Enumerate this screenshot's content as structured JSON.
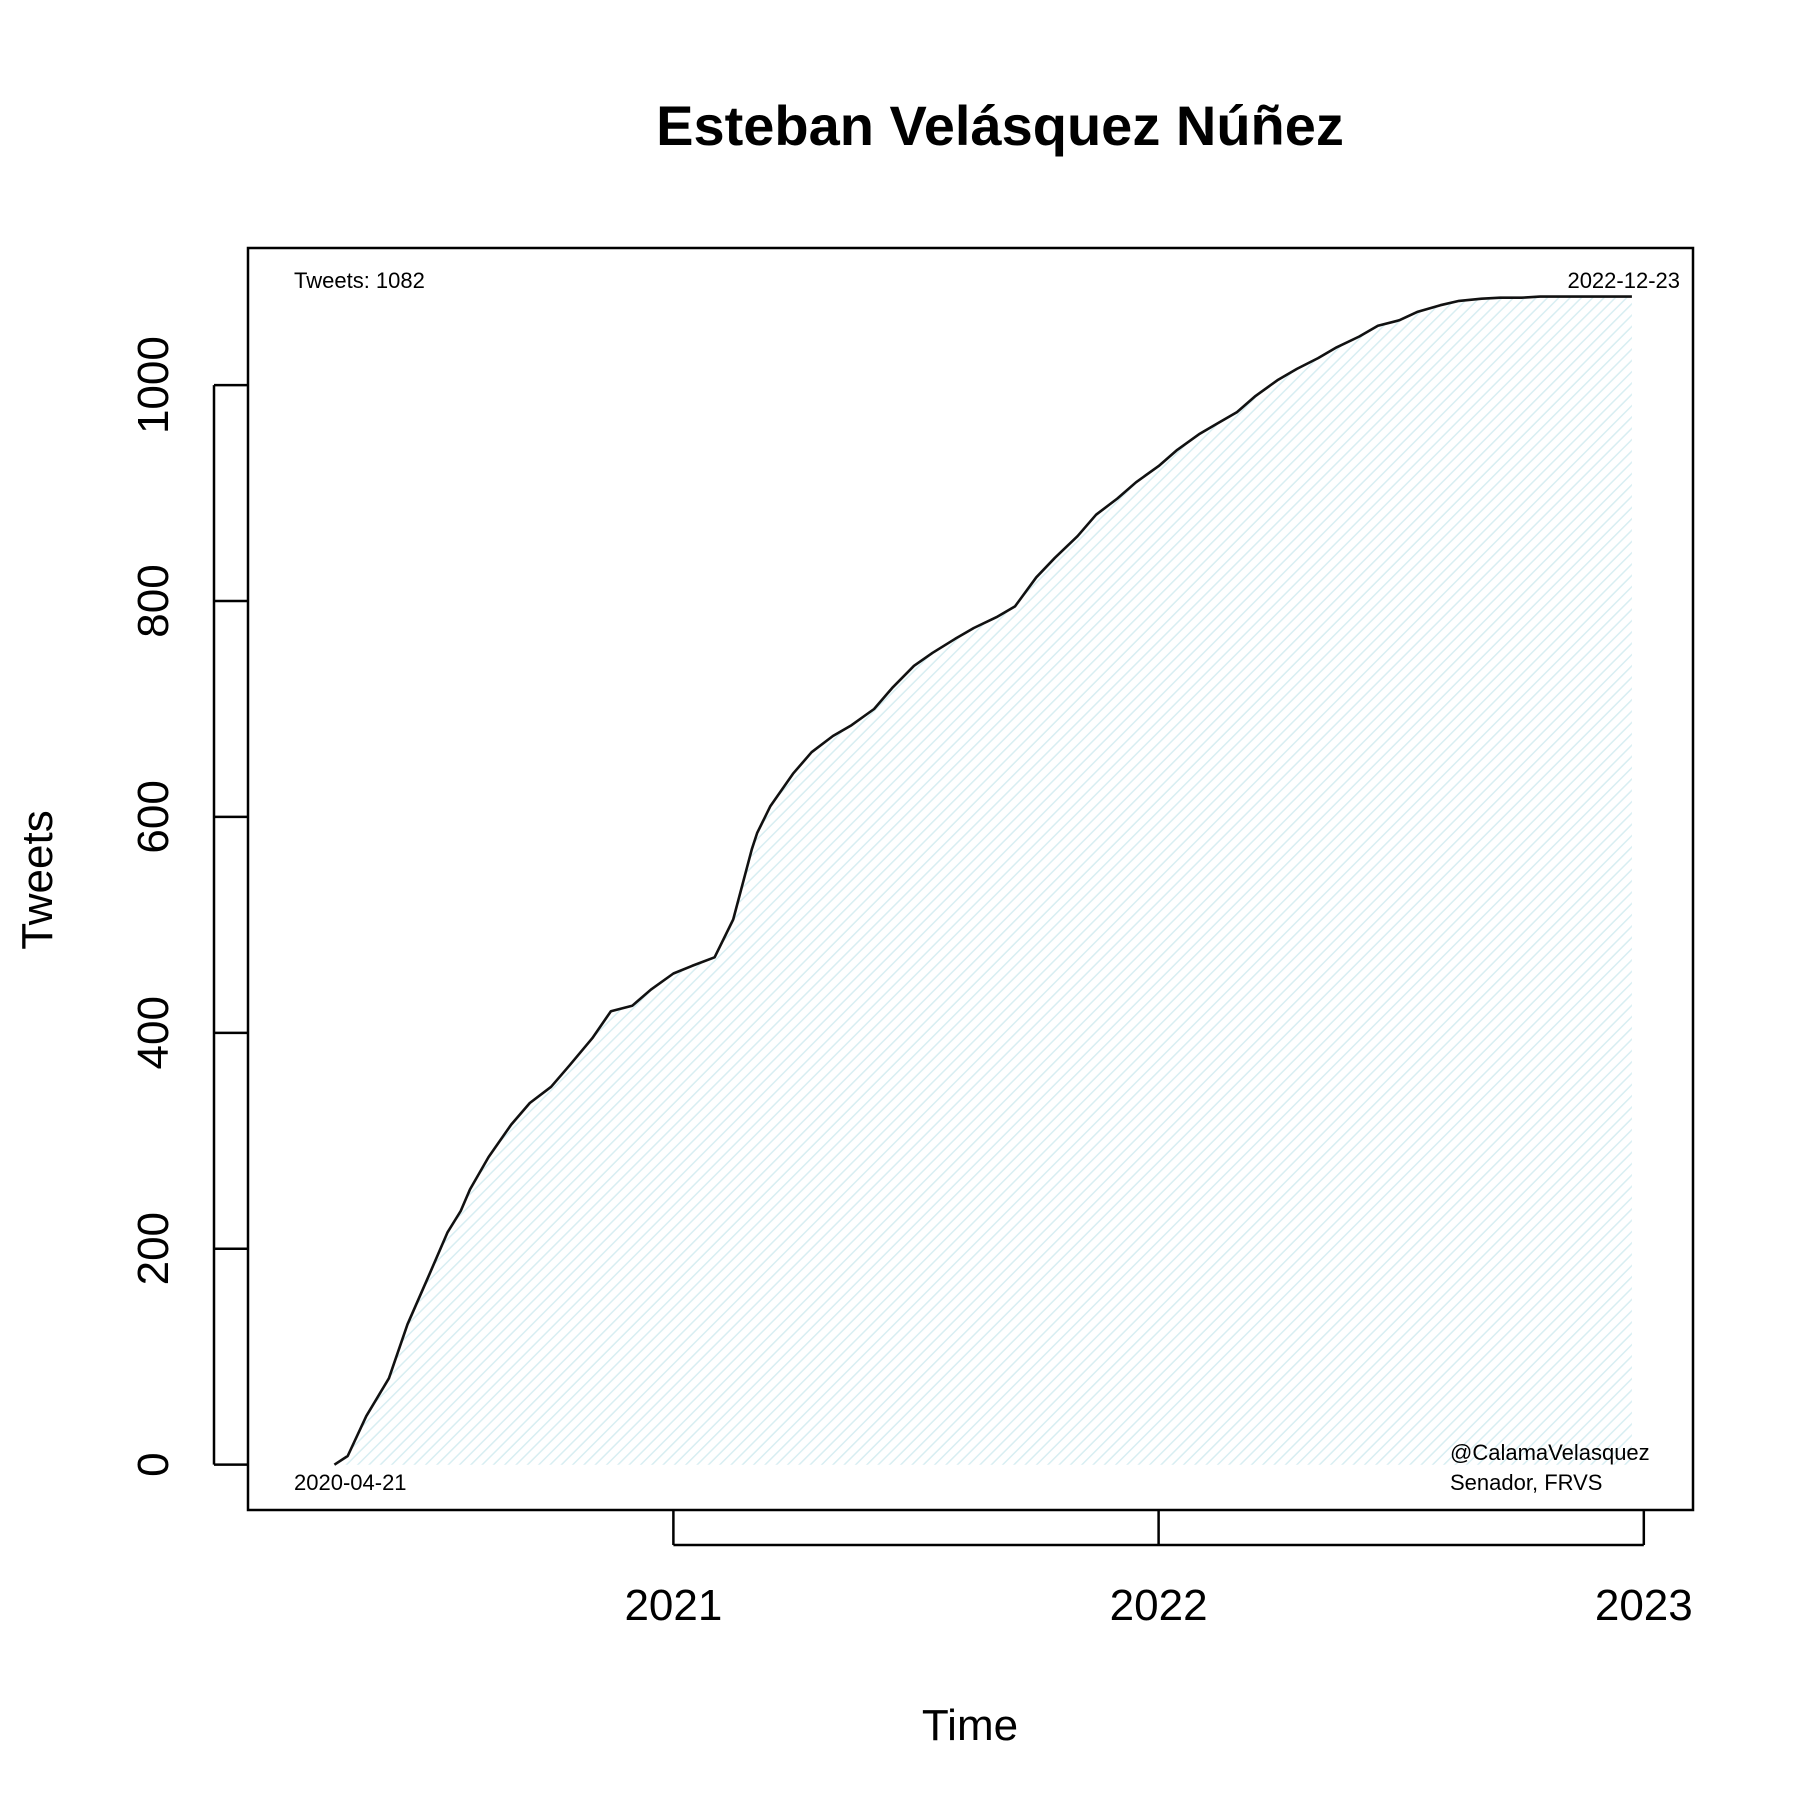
{
  "chart_data": {
    "type": "area",
    "title": "Esteban Velásquez Núñez",
    "xlabel": "Time",
    "ylabel": "Tweets",
    "x_ticks": [
      "2021",
      "2022",
      "2023"
    ],
    "y_ticks": [
      0,
      200,
      400,
      600,
      800,
      1000
    ],
    "ylim": [
      -42,
      1127
    ],
    "xlim": [
      "2020-02-16",
      "2023-02-07"
    ],
    "grid": false,
    "legend": "none",
    "fill_color": "#e8f4f6",
    "line_color": "#111111",
    "annotations": {
      "top_left": "Tweets: 1082",
      "top_right": "2022-12-23",
      "bottom_left": "2020-04-21",
      "bottom_right_1": "@CalamaVelasquez",
      "bottom_right_2": "Senador, FRVS"
    },
    "series": [
      {
        "x": [
          "2020-04-21",
          "2020-05-01",
          "2020-05-15",
          "2020-06-01",
          "2020-06-15",
          "2020-07-01",
          "2020-07-15",
          "2020-07-25",
          "2020-08-01",
          "2020-08-15",
          "2020-09-01",
          "2020-09-15",
          "2020-10-01",
          "2020-10-15",
          "2020-11-01",
          "2020-11-15",
          "2020-12-01",
          "2020-12-15",
          "2021-01-01",
          "2021-01-15",
          "2021-02-01",
          "2021-02-15",
          "2021-03-01",
          "2021-03-05",
          "2021-03-15",
          "2021-04-01",
          "2021-04-15",
          "2021-05-01",
          "2021-05-15",
          "2021-06-01",
          "2021-06-15",
          "2021-07-01",
          "2021-07-15",
          "2021-08-01",
          "2021-08-15",
          "2021-09-01",
          "2021-09-15",
          "2021-10-01",
          "2021-10-15",
          "2021-11-01",
          "2021-11-15",
          "2021-12-01",
          "2021-12-15",
          "2022-01-01",
          "2022-01-15",
          "2022-02-01",
          "2022-02-15",
          "2022-03-01",
          "2022-03-15",
          "2022-04-01",
          "2022-04-15",
          "2022-05-01",
          "2022-05-15",
          "2022-06-01",
          "2022-06-15",
          "2022-07-01",
          "2022-07-15",
          "2022-08-01",
          "2022-08-15",
          "2022-09-01",
          "2022-09-15",
          "2022-10-01",
          "2022-10-15",
          "2022-11-01",
          "2022-11-15",
          "2022-12-01",
          "2022-12-23"
        ],
        "y": [
          0,
          8,
          45,
          80,
          130,
          175,
          215,
          235,
          255,
          285,
          315,
          335,
          350,
          370,
          395,
          420,
          425,
          440,
          455,
          462,
          470,
          505,
          570,
          585,
          610,
          640,
          660,
          675,
          685,
          700,
          720,
          740,
          752,
          765,
          775,
          785,
          795,
          822,
          840,
          860,
          880,
          895,
          910,
          925,
          940,
          955,
          965,
          975,
          990,
          1005,
          1015,
          1025,
          1035,
          1045,
          1055,
          1060,
          1068,
          1074,
          1078,
          1080,
          1081,
          1081,
          1082,
          1082,
          1082,
          1082,
          1082
        ]
      }
    ]
  }
}
